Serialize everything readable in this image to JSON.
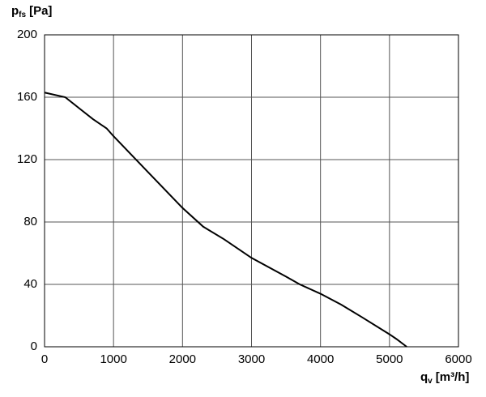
{
  "chart_data": {
    "type": "line",
    "y_label": {
      "symbol": "p",
      "subscript": "fs",
      "unit": "[Pa]"
    },
    "x_label": {
      "symbol": "q",
      "subscript": "v",
      "unit": "[m³/h]"
    },
    "x": [
      0,
      300,
      500,
      700,
      900,
      1000,
      1500,
      2000,
      2300,
      2600,
      3000,
      3500,
      3700,
      4000,
      4300,
      4600,
      5000,
      5100,
      5250
    ],
    "values": [
      163,
      160,
      153,
      146,
      140,
      135,
      112,
      89,
      77,
      69,
      57,
      45,
      40,
      34,
      27,
      19,
      8,
      5,
      0
    ],
    "color": "#000000",
    "xlim": [
      0,
      6000
    ],
    "xticks": [
      0,
      1000,
      2000,
      3000,
      4000,
      5000,
      6000
    ],
    "ylim": [
      0,
      200
    ],
    "yticks": [
      0,
      40,
      80,
      120,
      160,
      200
    ],
    "grid": true
  }
}
